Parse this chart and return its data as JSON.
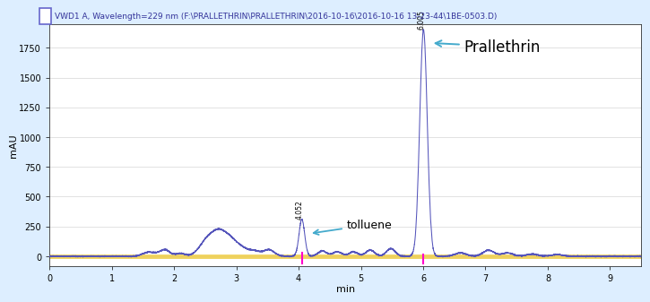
{
  "title": "VWD1 A, Wavelength=229 nm (F:\\PRALLETHRIN\\PRALLETHRIN\\2016-10-16\\2016-10-16 13-23-44\\1BE-0503.D)",
  "xlabel": "min",
  "ylabel": "mAU",
  "xlim": [
    0,
    9.5
  ],
  "ylim": [
    -80,
    1950
  ],
  "yticks": [
    0,
    250,
    500,
    750,
    1000,
    1250,
    1500,
    1750
  ],
  "xticks": [
    0,
    1,
    2,
    3,
    4,
    5,
    6,
    7,
    8,
    9
  ],
  "line_color": "#5555bb",
  "pink_color": "#ff00cc",
  "yellow_color": "#eecc44",
  "background_color": "#ffffff",
  "outer_bg": "#ddeeff",
  "annotation_toluene": "tolluene",
  "annotation_prallethrin": "Prallethrin",
  "toluene_x": 4.052,
  "prallethrin_x": 6.005,
  "toluene_peak": 310,
  "prallethrin_peak": 1900,
  "legend_square_color": "#6666cc",
  "arrow_color": "#44aacc",
  "title_fontsize": 6.5,
  "tick_fontsize": 7,
  "label_fontsize": 8,
  "annot_fontsize_toluene": 9,
  "annot_fontsize_prallethrin": 12
}
